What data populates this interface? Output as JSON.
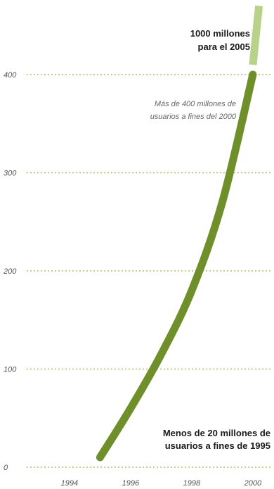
{
  "chart_data": {
    "type": "line",
    "x": [
      1995,
      1996,
      1997,
      1998,
      1999,
      2000
    ],
    "series": [
      {
        "values": [
          10,
          60,
          115,
          180,
          270,
          400
        ]
      }
    ],
    "projection": {
      "x": [
        2000,
        2000.2
      ],
      "values": [
        410,
        470
      ]
    },
    "xticks": [
      "1994",
      "1996",
      "1998",
      "2000"
    ],
    "yticks": [
      "0",
      "100",
      "200",
      "300",
      "400"
    ],
    "xlim": [
      1992.6,
      2000.6
    ],
    "ylim": [
      0,
      470
    ],
    "grid": "horizontal-dotted",
    "annotations": {
      "top": [
        "1000 millones",
        "para el 2005"
      ],
      "mid": [
        "Más de 400 millones de",
        "usuarios a fines del 2000"
      ],
      "bottom": [
        "Menos de 20 millones de",
        "usuarios a fines de 1995"
      ]
    },
    "colors": {
      "line": "#6f8f2a",
      "projection": "#b9d28a",
      "grid": "#a8bf6a",
      "text": "#555555"
    }
  }
}
